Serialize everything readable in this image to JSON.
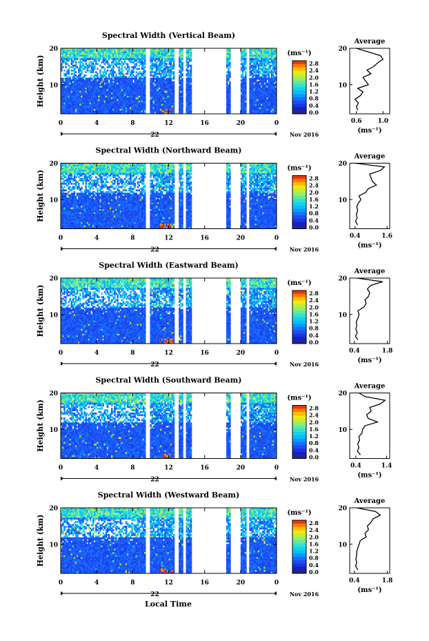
{
  "figure": {
    "xlabel_bottom": "Local Time",
    "date_label": "Nov 2016",
    "day_label": "22",
    "colorbar_unit": "(ms⁻¹)",
    "avg_title": "Average",
    "avg_unit": "(ms⁻¹)",
    "ylabel": "Height (km)"
  },
  "chart_data": [
    {
      "type": "heatmap",
      "title": "Spectral Width (Vertical Beam)",
      "xlabel": "",
      "ylabel": "Height (km)",
      "xticks": [
        "0",
        "4",
        "8",
        "12",
        "16",
        "20",
        "0"
      ],
      "xlim": [
        0,
        24
      ],
      "yticks": [
        "10",
        "20"
      ],
      "ylim": [
        2,
        20
      ],
      "colorbar": {
        "ticks": [
          "2.8",
          "2.4",
          "2.0",
          "1.6",
          "1.2",
          "0.8",
          "0.4",
          "0.0"
        ],
        "range": [
          0,
          3.0
        ]
      },
      "data_gaps_hours": [
        [
          9.5,
          10.0
        ],
        [
          12.7,
          13.1
        ],
        [
          13.6,
          14.0
        ],
        [
          14.6,
          18.4
        ],
        [
          18.9,
          20.0
        ],
        [
          20.6,
          21.0
        ]
      ],
      "average_profile": {
        "xticks": [
          "0.6",
          "1.0"
        ],
        "xlim": [
          0.5,
          1.1
        ],
        "yticks": [
          "10",
          "20"
        ],
        "height_km": [
          3,
          4,
          5,
          6,
          7,
          8,
          9,
          10,
          11,
          12,
          13,
          14,
          15,
          16,
          17,
          18,
          19,
          20
        ],
        "value": [
          0.62,
          0.6,
          0.63,
          0.58,
          0.66,
          0.7,
          0.62,
          0.78,
          0.74,
          0.7,
          0.82,
          0.76,
          0.86,
          0.92,
          1.0,
          0.96,
          0.78,
          0.6
        ]
      }
    },
    {
      "type": "heatmap",
      "title": "Spectral Width (Northward Beam)",
      "xlabel": "",
      "ylabel": "Height (km)",
      "xticks": [
        "0",
        "4",
        "8",
        "12",
        "16",
        "20",
        "0"
      ],
      "xlim": [
        0,
        24
      ],
      "yticks": [
        "10",
        "20"
      ],
      "ylim": [
        2,
        20
      ],
      "colorbar": {
        "ticks": [
          "2.8",
          "2.4",
          "2.0",
          "1.6",
          "1.2",
          "0.8",
          "0.4",
          "0.0"
        ],
        "range": [
          0,
          3.0
        ]
      },
      "data_gaps_hours": [
        [
          9.5,
          10.0
        ],
        [
          12.7,
          13.1
        ],
        [
          13.6,
          14.0
        ],
        [
          14.6,
          18.4
        ],
        [
          18.9,
          20.0
        ],
        [
          20.6,
          21.0
        ]
      ],
      "average_profile": {
        "xticks": [
          "0.4",
          "1.6"
        ],
        "xlim": [
          0.2,
          1.7
        ],
        "yticks": [
          "10",
          "20"
        ],
        "height_km": [
          3,
          4,
          5,
          6,
          7,
          8,
          9,
          10,
          11,
          12,
          13,
          14,
          15,
          16,
          17,
          18,
          19,
          20
        ],
        "value": [
          0.5,
          0.42,
          0.48,
          0.45,
          0.5,
          0.46,
          0.52,
          0.62,
          0.55,
          0.8,
          0.9,
          1.2,
          1.05,
          1.0,
          0.95,
          1.35,
          1.5,
          0.4
        ]
      }
    },
    {
      "type": "heatmap",
      "title": "Spectral Width (Eastward Beam)",
      "xlabel": "",
      "ylabel": "Height (km)",
      "xticks": [
        "0",
        "4",
        "8",
        "12",
        "16",
        "20",
        "0"
      ],
      "xlim": [
        0,
        24
      ],
      "yticks": [
        "10",
        "20"
      ],
      "ylim": [
        2,
        20
      ],
      "colorbar": {
        "ticks": [
          "2.8",
          "2.4",
          "2.0",
          "1.6",
          "1.2",
          "0.8",
          "0.4",
          "0.0"
        ],
        "range": [
          0,
          3.0
        ]
      },
      "data_gaps_hours": [
        [
          9.5,
          10.0
        ],
        [
          12.7,
          13.1
        ],
        [
          13.6,
          14.0
        ],
        [
          14.6,
          18.4
        ],
        [
          18.9,
          20.0
        ],
        [
          20.6,
          21.0
        ]
      ],
      "average_profile": {
        "xticks": [
          "0.4",
          "1.8"
        ],
        "xlim": [
          0.2,
          1.9
        ],
        "yticks": [
          "10",
          "20"
        ],
        "height_km": [
          3,
          4,
          5,
          6,
          7,
          8,
          9,
          10,
          11,
          12,
          13,
          14,
          15,
          16,
          17,
          18,
          19,
          20
        ],
        "value": [
          0.55,
          0.45,
          0.52,
          0.46,
          0.5,
          0.48,
          0.55,
          0.6,
          0.55,
          0.8,
          0.9,
          0.85,
          1.0,
          1.05,
          0.95,
          1.1,
          1.6,
          0.5
        ]
      }
    },
    {
      "type": "heatmap",
      "title": "Spectral Width (Southward Beam)",
      "xlabel": "",
      "ylabel": "Height (km)",
      "xticks": [
        "0",
        "4",
        "8",
        "12",
        "16",
        "20",
        "0"
      ],
      "xlim": [
        0,
        24
      ],
      "yticks": [
        "10",
        "20"
      ],
      "ylim": [
        2,
        20
      ],
      "colorbar": {
        "ticks": [
          "2.8",
          "2.4",
          "2.0",
          "1.6",
          "1.2",
          "0.8",
          "0.4",
          "0.0"
        ],
        "range": [
          0,
          3.0
        ]
      },
      "data_gaps_hours": [
        [
          9.5,
          10.0
        ],
        [
          12.7,
          13.1
        ],
        [
          13.6,
          14.0
        ],
        [
          14.6,
          18.4
        ],
        [
          18.9,
          20.0
        ],
        [
          20.6,
          21.0
        ]
      ],
      "average_profile": {
        "xticks": [
          "0.4",
          "1.4"
        ],
        "xlim": [
          0.2,
          1.5
        ],
        "yticks": [
          "10",
          "20"
        ],
        "height_km": [
          3,
          4,
          5,
          6,
          7,
          8,
          9,
          10,
          11,
          12,
          13,
          14,
          15,
          16,
          17,
          18,
          19,
          20
        ],
        "value": [
          0.55,
          0.45,
          0.5,
          0.46,
          0.52,
          0.5,
          0.6,
          0.62,
          0.7,
          1.1,
          0.8,
          0.75,
          0.9,
          0.85,
          1.2,
          1.35,
          0.7,
          0.5
        ]
      }
    },
    {
      "type": "heatmap",
      "title": "Spectral Width (Westward Beam)",
      "xlabel": "Local Time",
      "ylabel": "Height (km)",
      "xticks": [
        "0",
        "4",
        "8",
        "12",
        "16",
        "20",
        "0"
      ],
      "xlim": [
        0,
        24
      ],
      "yticks": [
        "10",
        "20"
      ],
      "ylim": [
        2,
        20
      ],
      "colorbar": {
        "ticks": [
          "2.8",
          "2.4",
          "2.0",
          "1.6",
          "1.2",
          "0.8",
          "0.4",
          "0.0"
        ],
        "range": [
          0,
          3.0
        ]
      },
      "data_gaps_hours": [
        [
          9.5,
          10.0
        ],
        [
          12.7,
          13.1
        ],
        [
          13.6,
          14.0
        ],
        [
          14.6,
          18.4
        ],
        [
          18.9,
          20.0
        ],
        [
          20.6,
          21.0
        ]
      ],
      "average_profile": {
        "xticks": [
          "0.4",
          "1.8"
        ],
        "xlim": [
          0.2,
          1.9
        ],
        "yticks": [
          "10",
          "20"
        ],
        "height_km": [
          3,
          4,
          5,
          6,
          7,
          8,
          9,
          10,
          11,
          12,
          13,
          14,
          15,
          16,
          17,
          18,
          19,
          20
        ],
        "value": [
          0.55,
          0.45,
          0.5,
          0.46,
          0.5,
          0.5,
          0.55,
          0.6,
          0.65,
          0.9,
          0.85,
          1.0,
          0.95,
          1.1,
          1.2,
          1.5,
          1.3,
          0.5
        ]
      }
    }
  ]
}
